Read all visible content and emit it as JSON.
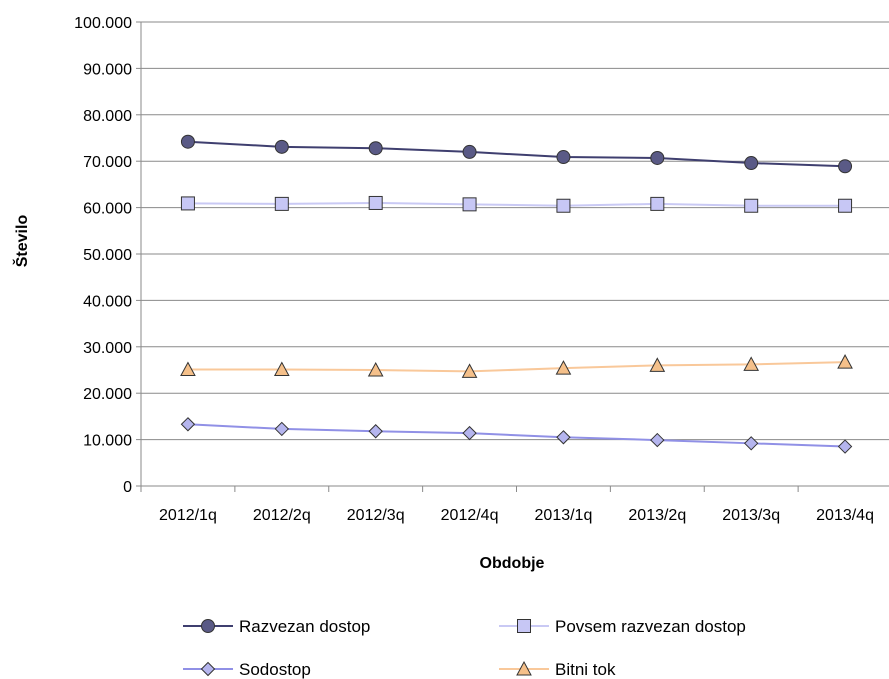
{
  "chart_data": {
    "type": "line",
    "title": "",
    "xlabel": "Obdobje",
    "ylabel": "Število",
    "categories": [
      "2012/1q",
      "2012/2q",
      "2012/3q",
      "2012/4q",
      "2013/1q",
      "2013/2q",
      "2013/3q",
      "2013/4q"
    ],
    "ylim": [
      0,
      100000
    ],
    "yticks": [
      0,
      10000,
      20000,
      30000,
      40000,
      50000,
      60000,
      70000,
      80000,
      90000,
      100000
    ],
    "ytick_labels": [
      "0",
      "10.000",
      "20.000",
      "30.000",
      "40.000",
      "50.000",
      "60.000",
      "70.000",
      "80.000",
      "90.000",
      "100.000"
    ],
    "grid": "horizontal",
    "legend_position": "bottom",
    "series": [
      {
        "name": "Razvezan dostop",
        "values": [
          74200,
          73100,
          72800,
          72000,
          70900,
          70700,
          69600,
          68900
        ],
        "color": "#3F3F6F",
        "fill": "#5A5A86",
        "marker": "circle"
      },
      {
        "name": "Povsem razvezan dostop",
        "values": [
          60900,
          60800,
          61000,
          60700,
          60400,
          60800,
          60400,
          60400
        ],
        "color": "#C9C9F4",
        "fill": "#C7C7F5",
        "marker": "square"
      },
      {
        "name": "Sodostop",
        "values": [
          13300,
          12300,
          11800,
          11400,
          10500,
          9900,
          9200,
          8500
        ],
        "color": "#9090E6",
        "fill": "#B5B5EE",
        "marker": "diamond"
      },
      {
        "name": "Bitni tok",
        "values": [
          25100,
          25100,
          25000,
          24700,
          25400,
          26000,
          26200,
          26700
        ],
        "color": "#F9C89A",
        "fill": "#F5C08A",
        "marker": "triangle"
      }
    ]
  }
}
